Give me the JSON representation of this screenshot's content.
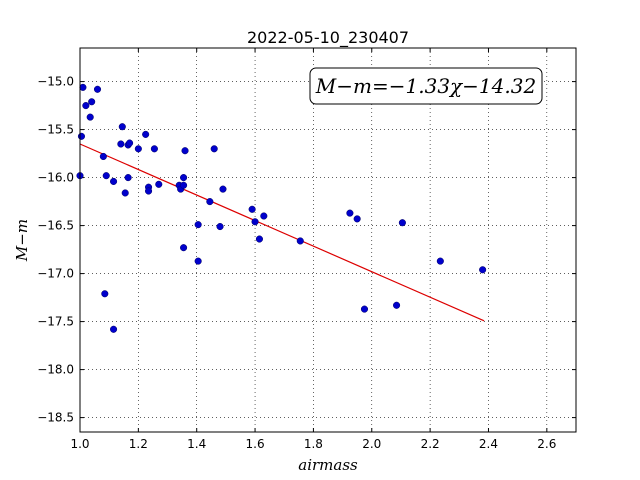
{
  "chart_data": {
    "type": "scatter",
    "title": "2022-05-10_230407",
    "xlabel": "airmass",
    "ylabel": "M−m",
    "xlim": [
      1.0,
      2.7
    ],
    "ylim": [
      -18.65,
      -14.65
    ],
    "x_ticks": [
      "1.0",
      "1.2",
      "1.4",
      "1.6",
      "1.8",
      "2.0",
      "2.2",
      "2.4",
      "2.6"
    ],
    "y_ticks": [
      "−15.0",
      "−15.5",
      "−16.0",
      "−16.5",
      "−17.0",
      "−17.5",
      "−18.0",
      "−18.5"
    ],
    "grid": true,
    "annotation": "M−m=−1.33χ−14.32",
    "marker_color": "#0000cc",
    "fit_color": "#dd0000",
    "points": [
      {
        "x": 1.01,
        "y": -15.06
      },
      {
        "x": 1.02,
        "y": -15.25
      },
      {
        "x": 1.04,
        "y": -15.21
      },
      {
        "x": 1.06,
        "y": -15.08
      },
      {
        "x": 1.035,
        "y": -15.37
      },
      {
        "x": 1.005,
        "y": -15.57
      },
      {
        "x": 1.0,
        "y": -15.98
      },
      {
        "x": 1.08,
        "y": -15.78
      },
      {
        "x": 1.09,
        "y": -15.98
      },
      {
        "x": 1.115,
        "y": -16.04
      },
      {
        "x": 1.145,
        "y": -15.47
      },
      {
        "x": 1.14,
        "y": -15.65
      },
      {
        "x": 1.165,
        "y": -15.66
      },
      {
        "x": 1.17,
        "y": -15.64
      },
      {
        "x": 1.165,
        "y": -16.0
      },
      {
        "x": 1.155,
        "y": -16.16
      },
      {
        "x": 1.2,
        "y": -15.7
      },
      {
        "x": 1.225,
        "y": -15.55
      },
      {
        "x": 1.255,
        "y": -15.7
      },
      {
        "x": 1.235,
        "y": -16.1
      },
      {
        "x": 1.235,
        "y": -16.14
      },
      {
        "x": 1.27,
        "y": -16.07
      },
      {
        "x": 1.34,
        "y": -16.08
      },
      {
        "x": 1.345,
        "y": -16.12
      },
      {
        "x": 1.355,
        "y": -16.0
      },
      {
        "x": 1.355,
        "y": -16.08
      },
      {
        "x": 1.36,
        "y": -15.72
      },
      {
        "x": 1.355,
        "y": -16.73
      },
      {
        "x": 1.405,
        "y": -16.49
      },
      {
        "x": 1.405,
        "y": -16.87
      },
      {
        "x": 1.445,
        "y": -16.25
      },
      {
        "x": 1.46,
        "y": -15.7
      },
      {
        "x": 1.49,
        "y": -16.12
      },
      {
        "x": 1.48,
        "y": -16.51
      },
      {
        "x": 1.085,
        "y": -17.21
      },
      {
        "x": 1.115,
        "y": -17.58
      },
      {
        "x": 1.59,
        "y": -16.33
      },
      {
        "x": 1.6,
        "y": -16.46
      },
      {
        "x": 1.615,
        "y": -16.64
      },
      {
        "x": 1.63,
        "y": -16.4
      },
      {
        "x": 1.755,
        "y": -16.66
      },
      {
        "x": 1.925,
        "y": -16.37
      },
      {
        "x": 1.95,
        "y": -16.43
      },
      {
        "x": 1.975,
        "y": -17.37
      },
      {
        "x": 2.085,
        "y": -17.33
      },
      {
        "x": 2.105,
        "y": -16.47
      },
      {
        "x": 2.235,
        "y": -16.87
      },
      {
        "x": 2.38,
        "y": -16.96
      }
    ],
    "fit": {
      "slope": -1.33,
      "intercept": -14.32,
      "x_range": [
        1.0,
        2.385
      ]
    }
  }
}
